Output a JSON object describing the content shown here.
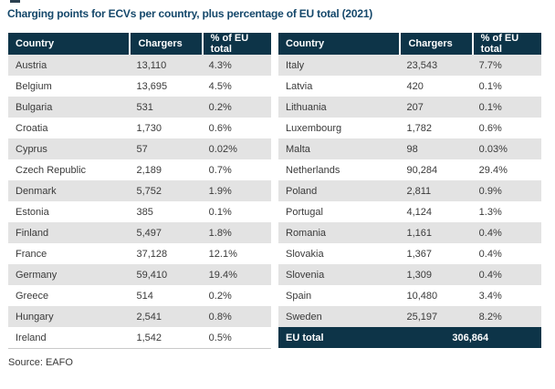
{
  "colors": {
    "header_navy": "#0d3448",
    "title_blue": "#15486b",
    "row_alt_gray": "#e3e3e3",
    "body_text": "#3a3a3a"
  },
  "chart_data": {
    "type": "table",
    "title": "Charging points for ECVs per country, plus percentage of EU total (2021)",
    "columns": [
      "Country",
      "Chargers",
      "% of EU total"
    ],
    "left_table": {
      "headers": [
        "Country",
        "Chargers",
        "% of EU total"
      ],
      "rows": [
        [
          "Austria",
          "13,110",
          "4.3%"
        ],
        [
          "Belgium",
          "13,695",
          "4.5%"
        ],
        [
          "Bulgaria",
          "531",
          "0.2%"
        ],
        [
          "Croatia",
          "1,730",
          "0.6%"
        ],
        [
          "Cyprus",
          "57",
          "0.02%"
        ],
        [
          "Czech Republic",
          "2,189",
          "0.7%"
        ],
        [
          "Denmark",
          "5,752",
          "1.9%"
        ],
        [
          "Estonia",
          "385",
          "0.1%"
        ],
        [
          "Finland",
          "5,497",
          "1.8%"
        ],
        [
          "France",
          "37,128",
          "12.1%"
        ],
        [
          "Germany",
          "59,410",
          "19.4%"
        ],
        [
          "Greece",
          "514",
          "0.2%"
        ],
        [
          "Hungary",
          "2,541",
          "0.8%"
        ],
        [
          "Ireland",
          "1,542",
          "0.5%"
        ]
      ]
    },
    "right_table": {
      "headers": [
        "Country",
        "Chargers",
        "% of EU total"
      ],
      "rows": [
        [
          "Italy",
          "23,543",
          "7.7%"
        ],
        [
          "Latvia",
          "420",
          "0.1%"
        ],
        [
          "Lithuania",
          "207",
          "0.1%"
        ],
        [
          "Luxembourg",
          "1,782",
          "0.6%"
        ],
        [
          "Malta",
          "98",
          "0.03%"
        ],
        [
          "Netherlands",
          "90,284",
          "29.4%"
        ],
        [
          "Poland",
          "2,811",
          "0.9%"
        ],
        [
          "Portugal",
          "4,124",
          "1.3%"
        ],
        [
          "Romania",
          "1,161",
          "0.4%"
        ],
        [
          "Slovakia",
          "1,367",
          "0.4%"
        ],
        [
          "Slovenia",
          "1,309",
          "0.4%"
        ],
        [
          "Spain",
          "10,480",
          "3.4%"
        ],
        [
          "Sweden",
          "25,197",
          "8.2%"
        ]
      ],
      "total_row": {
        "label": "EU total",
        "chargers": "306,864"
      }
    },
    "source": "Source: EAFO"
  }
}
